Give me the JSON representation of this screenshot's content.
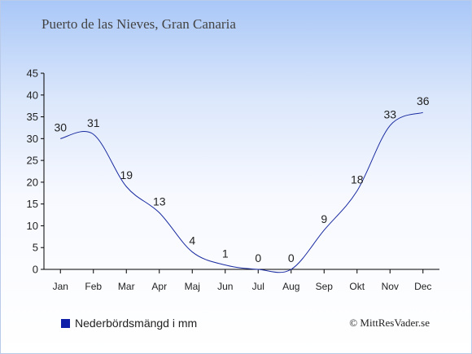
{
  "header": {
    "title": "Puerto de las Nieves, Gran Canaria"
  },
  "footer": {
    "copyright": "© MittResVader.se"
  },
  "colors": {
    "line": "#1a2ba0",
    "axis": "#000000",
    "text": "#222222",
    "legend_swatch": "#0f1fa8"
  },
  "chart_data": {
    "type": "line",
    "title": "Puerto de las Nieves, Gran Canaria",
    "xlabel": "",
    "ylabel": "",
    "categories": [
      "Jan",
      "Feb",
      "Mar",
      "Apr",
      "Maj",
      "Jun",
      "Jul",
      "Aug",
      "Sep",
      "Okt",
      "Nov",
      "Dec"
    ],
    "series": [
      {
        "name": "Nederbördsmängd i mm",
        "values": [
          30,
          31,
          19,
          13,
          4,
          1,
          0,
          0,
          9,
          18,
          33,
          36
        ]
      }
    ],
    "yticks": [
      0,
      5,
      10,
      15,
      20,
      25,
      30,
      35,
      40,
      45
    ],
    "ylim": [
      0,
      45
    ],
    "grid": false,
    "legend_position": "bottom-left"
  }
}
